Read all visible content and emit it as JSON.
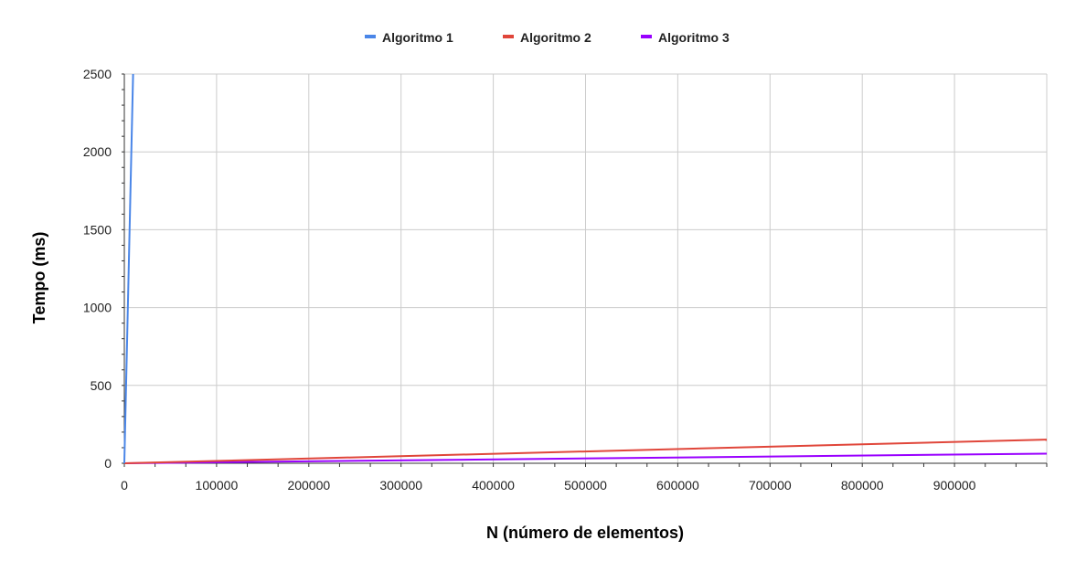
{
  "chart_data": {
    "type": "line",
    "xlabel": "N (número de elementos)",
    "ylabel": "Tempo (ms)",
    "xlim": [
      0,
      1000000
    ],
    "ylim": [
      0,
      2500
    ],
    "x_ticks": [
      0,
      100000,
      200000,
      300000,
      400000,
      500000,
      600000,
      700000,
      800000,
      900000
    ],
    "y_ticks": [
      0,
      500,
      1000,
      1500,
      2000,
      2500
    ],
    "grid": true,
    "legend_position": "top",
    "series": [
      {
        "name": "Algoritmo 1",
        "color": "#4a86e8",
        "x": [
          0,
          9500
        ],
        "y": [
          0,
          2500
        ]
      },
      {
        "name": "Algoritmo 2",
        "color": "#e0463a",
        "x": [
          0,
          1000000
        ],
        "y": [
          0,
          152
        ]
      },
      {
        "name": "Algoritmo 3",
        "color": "#9900ff",
        "x": [
          0,
          1000000
        ],
        "y": [
          0,
          62
        ]
      }
    ]
  }
}
